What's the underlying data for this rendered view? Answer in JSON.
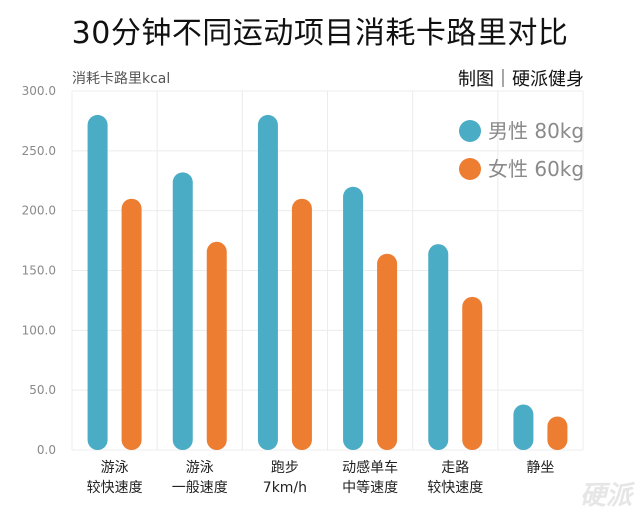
{
  "header": {
    "title": "30分钟不同运动项目消耗卡路里对比",
    "unit": "消耗卡路里kcal",
    "credit": "制图｜硬派健身"
  },
  "watermark": "硬派",
  "chart_data": {
    "type": "bar",
    "title": "30分钟不同运动项目消耗卡路里对比",
    "ylabel": "消耗卡路里kcal",
    "xlabel": "",
    "ylim": [
      0,
      300
    ],
    "yticks": [
      "0.0",
      "50.0",
      "100.0",
      "150.0",
      "200.0",
      "250.0",
      "300.0"
    ],
    "grid": true,
    "legend_position": "top-right",
    "categories": [
      [
        "游泳",
        "较快速度"
      ],
      [
        "游泳",
        "一般速度"
      ],
      [
        "跑步",
        "7km/h"
      ],
      [
        "动感单车",
        "中等速度"
      ],
      [
        "走路",
        "较快速度"
      ],
      [
        "静坐"
      ]
    ],
    "series": [
      {
        "name": "男性 80kg",
        "color": "#4bacc6",
        "values": [
          280,
          232,
          280,
          220,
          172,
          38
        ]
      },
      {
        "name": "女性 60kg",
        "color": "#ed7d31",
        "values": [
          210,
          174,
          210,
          164,
          128,
          28
        ]
      }
    ]
  }
}
